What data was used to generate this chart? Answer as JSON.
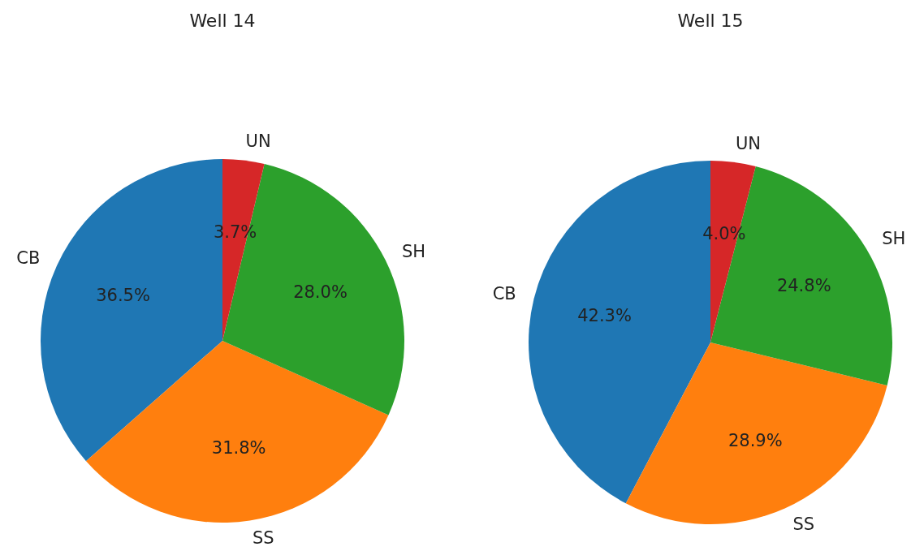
{
  "chart_data": [
    {
      "type": "pie",
      "title": "Well 14",
      "categories": [
        "CB",
        "SS",
        "SH",
        "UN"
      ],
      "values": [
        36.5,
        31.8,
        28.0,
        3.7
      ],
      "colors": [
        "#1f77b4",
        "#ff7f0e",
        "#2ca02c",
        "#d62728"
      ],
      "value_labels": [
        "36.5%",
        "31.8%",
        "28.0%",
        "3.7%"
      ]
    },
    {
      "type": "pie",
      "title": "Well 15",
      "categories": [
        "CB",
        "SS",
        "SH",
        "UN"
      ],
      "values": [
        42.3,
        28.9,
        24.8,
        4.0
      ],
      "colors": [
        "#1f77b4",
        "#ff7f0e",
        "#2ca02c",
        "#d62728"
      ],
      "value_labels": [
        "42.3%",
        "28.9%",
        "24.8%",
        "4.0%"
      ]
    }
  ]
}
